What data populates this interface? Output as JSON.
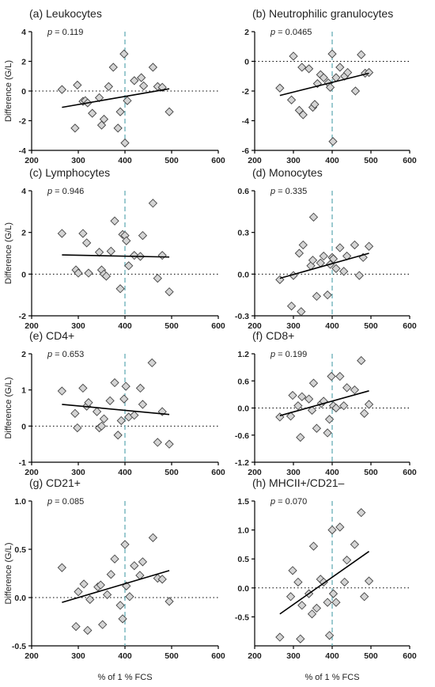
{
  "chart_data": [
    {
      "type": "scatter",
      "title": "(a) Leukocytes",
      "p_label": "p",
      "p_value": "= 0.119",
      "ylabel": "Difference (G/L)",
      "xlabel": "",
      "xlim": [
        200,
        600
      ],
      "xticks": [
        200,
        300,
        400,
        500,
        600
      ],
      "ylim": [
        -4,
        4
      ],
      "yticks": [
        -4,
        -2,
        0,
        2,
        4
      ],
      "ytick_labels": [
        "-4",
        "-2",
        "0",
        "2",
        "4"
      ],
      "ref_x": 400,
      "regression": {
        "x": [
          265,
          495
        ],
        "y": [
          -1.1,
          0.15
        ]
      },
      "points": [
        {
          "x": 265,
          "y": 0.1
        },
        {
          "x": 293,
          "y": -2.5
        },
        {
          "x": 298,
          "y": 0.4
        },
        {
          "x": 310,
          "y": -0.7
        },
        {
          "x": 315,
          "y": -0.65
        },
        {
          "x": 320,
          "y": -0.8
        },
        {
          "x": 330,
          "y": -1.5
        },
        {
          "x": 345,
          "y": -0.45
        },
        {
          "x": 350,
          "y": -2.3
        },
        {
          "x": 355,
          "y": -1.9
        },
        {
          "x": 365,
          "y": 0.3
        },
        {
          "x": 375,
          "y": 1.6
        },
        {
          "x": 385,
          "y": -2.5
        },
        {
          "x": 390,
          "y": -1.4
        },
        {
          "x": 398,
          "y": 2.5
        },
        {
          "x": 400,
          "y": -3.5
        },
        {
          "x": 405,
          "y": -0.65
        },
        {
          "x": 420,
          "y": 0.7
        },
        {
          "x": 435,
          "y": 0.9
        },
        {
          "x": 440,
          "y": 0.35
        },
        {
          "x": 460,
          "y": 1.6
        },
        {
          "x": 470,
          "y": 0.3
        },
        {
          "x": 480,
          "y": 0.25
        },
        {
          "x": 495,
          "y": -1.4
        }
      ]
    },
    {
      "type": "scatter",
      "title": "(b) Neutrophilic granulocytes",
      "p_label": "p",
      "p_value": "= 0.0465",
      "ylabel": "",
      "xlabel": "",
      "xlim": [
        200,
        600
      ],
      "xticks": [
        200,
        300,
        400,
        500,
        600
      ],
      "ylim": [
        -6,
        2
      ],
      "yticks": [
        -6,
        -4,
        -2,
        0,
        2
      ],
      "ytick_labels": [
        "-6",
        "-4",
        "-2",
        "0",
        "2"
      ],
      "ref_x": 400,
      "regression": {
        "x": [
          265,
          495
        ],
        "y": [
          -2.3,
          -0.8
        ]
      },
      "points": [
        {
          "x": 265,
          "y": -1.8
        },
        {
          "x": 295,
          "y": -2.6
        },
        {
          "x": 300,
          "y": 0.35
        },
        {
          "x": 315,
          "y": -3.3
        },
        {
          "x": 322,
          "y": -0.4
        },
        {
          "x": 325,
          "y": -3.6
        },
        {
          "x": 340,
          "y": -0.5
        },
        {
          "x": 350,
          "y": -3.1
        },
        {
          "x": 355,
          "y": -2.9
        },
        {
          "x": 362,
          "y": -1.5
        },
        {
          "x": 370,
          "y": -0.9
        },
        {
          "x": 378,
          "y": -1.1
        },
        {
          "x": 390,
          "y": -1.45
        },
        {
          "x": 395,
          "y": -1.75
        },
        {
          "x": 400,
          "y": 0.5
        },
        {
          "x": 402,
          "y": -5.4
        },
        {
          "x": 410,
          "y": -1.1
        },
        {
          "x": 420,
          "y": -0.4
        },
        {
          "x": 432,
          "y": -1.0
        },
        {
          "x": 440,
          "y": -0.75
        },
        {
          "x": 460,
          "y": -2.0
        },
        {
          "x": 475,
          "y": 0.45
        },
        {
          "x": 485,
          "y": -0.8
        },
        {
          "x": 495,
          "y": -0.75
        }
      ]
    },
    {
      "type": "scatter",
      "title": "(c) Lymphocytes",
      "p_label": "p",
      "p_value": "= 0.946",
      "ylabel": "Difference (G/L)",
      "xlabel": "",
      "xlim": [
        200,
        600
      ],
      "xticks": [
        200,
        300,
        400,
        500,
        600
      ],
      "ylim": [
        -2,
        4
      ],
      "yticks": [
        -2,
        0,
        2,
        4
      ],
      "ytick_labels": [
        "-2",
        "0",
        "2",
        "4"
      ],
      "ref_x": 400,
      "regression": {
        "x": [
          265,
          495
        ],
        "y": [
          0.92,
          0.82
        ]
      },
      "points": [
        {
          "x": 265,
          "y": 1.95
        },
        {
          "x": 295,
          "y": 0.2
        },
        {
          "x": 300,
          "y": 0.05
        },
        {
          "x": 310,
          "y": 1.95
        },
        {
          "x": 318,
          "y": 1.5
        },
        {
          "x": 322,
          "y": 0.05
        },
        {
          "x": 345,
          "y": 1.05
        },
        {
          "x": 350,
          "y": 0.2
        },
        {
          "x": 355,
          "y": 0.0
        },
        {
          "x": 360,
          "y": -0.1
        },
        {
          "x": 370,
          "y": 1.1
        },
        {
          "x": 378,
          "y": 2.55
        },
        {
          "x": 390,
          "y": -0.7
        },
        {
          "x": 395,
          "y": 1.9
        },
        {
          "x": 400,
          "y": 1.85
        },
        {
          "x": 403,
          "y": 1.6
        },
        {
          "x": 408,
          "y": 0.4
        },
        {
          "x": 420,
          "y": 0.9
        },
        {
          "x": 433,
          "y": 0.85
        },
        {
          "x": 438,
          "y": 1.85
        },
        {
          "x": 460,
          "y": 3.4
        },
        {
          "x": 470,
          "y": -0.2
        },
        {
          "x": 480,
          "y": 0.9
        },
        {
          "x": 495,
          "y": -0.85
        }
      ]
    },
    {
      "type": "scatter",
      "title": "(d) Monocytes",
      "p_label": "p",
      "p_value": "= 0.335",
      "ylabel": "",
      "xlabel": "",
      "xlim": [
        200,
        600
      ],
      "xticks": [
        200,
        300,
        400,
        500,
        600
      ],
      "ylim": [
        -0.3,
        0.6
      ],
      "yticks": [
        -0.3,
        0,
        0.3,
        0.6
      ],
      "ytick_labels": [
        "-0.3",
        "0.0",
        "0.3",
        "0.6"
      ],
      "ref_x": 400,
      "regression": {
        "x": [
          265,
          495
        ],
        "y": [
          -0.03,
          0.15
        ]
      },
      "points": [
        {
          "x": 265,
          "y": -0.04
        },
        {
          "x": 295,
          "y": -0.23
        },
        {
          "x": 300,
          "y": -0.01
        },
        {
          "x": 315,
          "y": 0.15
        },
        {
          "x": 320,
          "y": -0.27
        },
        {
          "x": 325,
          "y": 0.21
        },
        {
          "x": 345,
          "y": 0.06
        },
        {
          "x": 350,
          "y": 0.1
        },
        {
          "x": 352,
          "y": 0.41
        },
        {
          "x": 360,
          "y": -0.16
        },
        {
          "x": 370,
          "y": 0.08
        },
        {
          "x": 378,
          "y": 0.13
        },
        {
          "x": 388,
          "y": -0.15
        },
        {
          "x": 395,
          "y": 0.07
        },
        {
          "x": 400,
          "y": 0.12
        },
        {
          "x": 403,
          "y": 0.11
        },
        {
          "x": 410,
          "y": 0.04
        },
        {
          "x": 420,
          "y": 0.19
        },
        {
          "x": 430,
          "y": 0.02
        },
        {
          "x": 438,
          "y": 0.13
        },
        {
          "x": 458,
          "y": 0.21
        },
        {
          "x": 470,
          "y": -0.01
        },
        {
          "x": 480,
          "y": 0.12
        },
        {
          "x": 495,
          "y": 0.2
        }
      ]
    },
    {
      "type": "scatter",
      "title": "(e) CD4+",
      "p_label": "p",
      "p_value": "= 0.653",
      "ylabel": "Difference (G/L)",
      "xlabel": "",
      "xlim": [
        200,
        600
      ],
      "xticks": [
        200,
        300,
        400,
        500,
        600
      ],
      "ylim": [
        -1,
        2
      ],
      "yticks": [
        -1,
        0,
        1,
        2
      ],
      "ytick_labels": [
        "-1",
        "0",
        "1",
        "2"
      ],
      "ref_x": 400,
      "regression": {
        "x": [
          265,
          495
        ],
        "y": [
          0.6,
          0.32
        ]
      },
      "points": [
        {
          "x": 265,
          "y": 0.97
        },
        {
          "x": 293,
          "y": 0.35
        },
        {
          "x": 298,
          "y": -0.05
        },
        {
          "x": 310,
          "y": 1.05
        },
        {
          "x": 318,
          "y": 0.55
        },
        {
          "x": 322,
          "y": 0.65
        },
        {
          "x": 340,
          "y": 0.4
        },
        {
          "x": 345,
          "y": -0.05
        },
        {
          "x": 350,
          "y": 0.0
        },
        {
          "x": 355,
          "y": 0.2
        },
        {
          "x": 368,
          "y": 0.7
        },
        {
          "x": 378,
          "y": 1.2
        },
        {
          "x": 385,
          "y": -0.25
        },
        {
          "x": 392,
          "y": 0.15
        },
        {
          "x": 398,
          "y": 0.75
        },
        {
          "x": 402,
          "y": 1.1
        },
        {
          "x": 408,
          "y": 0.25
        },
        {
          "x": 420,
          "y": 0.3
        },
        {
          "x": 433,
          "y": 1.05
        },
        {
          "x": 438,
          "y": 0.6
        },
        {
          "x": 458,
          "y": 1.75
        },
        {
          "x": 470,
          "y": -0.45
        },
        {
          "x": 480,
          "y": 0.4
        },
        {
          "x": 495,
          "y": -0.5
        }
      ]
    },
    {
      "type": "scatter",
      "title": "(f) CD8+",
      "p_label": "p",
      "p_value": "= 0.199",
      "ylabel": "",
      "xlabel": "",
      "xlim": [
        200,
        600
      ],
      "xticks": [
        200,
        300,
        400,
        500,
        600
      ],
      "ylim": [
        -1.2,
        1.2
      ],
      "yticks": [
        -1.2,
        -0.6,
        0,
        0.6,
        1.2
      ],
      "ytick_labels": [
        "-1.2",
        "-0.6",
        "0.0",
        "0.6",
        "1.2"
      ],
      "ref_x": 400,
      "regression": {
        "x": [
          265,
          495
        ],
        "y": [
          -0.17,
          0.38
        ]
      },
      "points": [
        {
          "x": 265,
          "y": -0.2
        },
        {
          "x": 293,
          "y": -0.18
        },
        {
          "x": 298,
          "y": 0.28
        },
        {
          "x": 312,
          "y": 0.05
        },
        {
          "x": 318,
          "y": -0.65
        },
        {
          "x": 322,
          "y": 0.25
        },
        {
          "x": 340,
          "y": 0.2
        },
        {
          "x": 348,
          "y": -0.05
        },
        {
          "x": 352,
          "y": 0.55
        },
        {
          "x": 360,
          "y": -0.45
        },
        {
          "x": 372,
          "y": 0.1
        },
        {
          "x": 378,
          "y": 0.15
        },
        {
          "x": 388,
          "y": -0.55
        },
        {
          "x": 393,
          "y": -0.25
        },
        {
          "x": 398,
          "y": 0.7
        },
        {
          "x": 403,
          "y": 0.05
        },
        {
          "x": 410,
          "y": 0.0
        },
        {
          "x": 420,
          "y": 0.7
        },
        {
          "x": 430,
          "y": 0.05
        },
        {
          "x": 438,
          "y": 0.45
        },
        {
          "x": 458,
          "y": 0.4
        },
        {
          "x": 475,
          "y": 1.05
        },
        {
          "x": 483,
          "y": -0.12
        },
        {
          "x": 495,
          "y": 0.08
        }
      ]
    },
    {
      "type": "scatter",
      "title": "(g) CD21+",
      "p_label": "p",
      "p_value": "= 0.085",
      "ylabel": "Difference (G/L)",
      "xlabel": "% of 1 % FCS",
      "xlim": [
        200,
        600
      ],
      "xticks": [
        200,
        300,
        400,
        500,
        600
      ],
      "ylim": [
        -0.5,
        1.0
      ],
      "yticks": [
        -0.5,
        0,
        0.5,
        1.0
      ],
      "ytick_labels": [
        "-0.5",
        "0.0",
        "0.5",
        "1.0"
      ],
      "ref_x": 400,
      "regression": {
        "x": [
          265,
          495
        ],
        "y": [
          -0.05,
          0.28
        ]
      },
      "points": [
        {
          "x": 265,
          "y": 0.31
        },
        {
          "x": 295,
          "y": -0.3
        },
        {
          "x": 300,
          "y": 0.06
        },
        {
          "x": 312,
          "y": 0.14
        },
        {
          "x": 320,
          "y": -0.34
        },
        {
          "x": 325,
          "y": -0.02
        },
        {
          "x": 342,
          "y": 0.11
        },
        {
          "x": 348,
          "y": 0.13
        },
        {
          "x": 352,
          "y": -0.28
        },
        {
          "x": 362,
          "y": 0.03
        },
        {
          "x": 370,
          "y": 0.24
        },
        {
          "x": 378,
          "y": 0.4
        },
        {
          "x": 390,
          "y": -0.08
        },
        {
          "x": 395,
          "y": -0.22
        },
        {
          "x": 400,
          "y": 0.55
        },
        {
          "x": 403,
          "y": 0.12
        },
        {
          "x": 410,
          "y": 0.01
        },
        {
          "x": 420,
          "y": 0.33
        },
        {
          "x": 432,
          "y": 0.23
        },
        {
          "x": 438,
          "y": 0.37
        },
        {
          "x": 460,
          "y": 0.62
        },
        {
          "x": 470,
          "y": 0.2
        },
        {
          "x": 480,
          "y": 0.19
        },
        {
          "x": 495,
          "y": -0.04
        }
      ]
    },
    {
      "type": "scatter",
      "title": "(h) MHCII+/CD21–",
      "p_label": "p",
      "p_value": "= 0.070",
      "ylabel": "",
      "xlabel": "% of 1 % FCS",
      "xlim": [
        200,
        600
      ],
      "xticks": [
        200,
        300,
        400,
        500,
        600
      ],
      "ylim": [
        -1.0,
        1.5
      ],
      "yticks": [
        -0.5,
        0,
        0.5,
        1.0,
        1.5
      ],
      "ytick_labels": [
        "-0.5",
        "0.0",
        "0.5",
        "1.0",
        "1.5"
      ],
      "ref_x": 400,
      "regression": {
        "x": [
          265,
          495
        ],
        "y": [
          -0.45,
          0.63
        ]
      },
      "points": [
        {
          "x": 265,
          "y": -0.85
        },
        {
          "x": 293,
          "y": -0.15
        },
        {
          "x": 298,
          "y": 0.3
        },
        {
          "x": 312,
          "y": 0.1
        },
        {
          "x": 318,
          "y": -0.88
        },
        {
          "x": 322,
          "y": -0.3
        },
        {
          "x": 340,
          "y": -0.1
        },
        {
          "x": 348,
          "y": -0.45
        },
        {
          "x": 352,
          "y": 0.72
        },
        {
          "x": 360,
          "y": -0.35
        },
        {
          "x": 370,
          "y": 0.15
        },
        {
          "x": 378,
          "y": 0.1
        },
        {
          "x": 388,
          "y": -0.25
        },
        {
          "x": 393,
          "y": -0.82
        },
        {
          "x": 400,
          "y": 1.0
        },
        {
          "x": 403,
          "y": -0.1
        },
        {
          "x": 410,
          "y": -0.25
        },
        {
          "x": 420,
          "y": 1.05
        },
        {
          "x": 432,
          "y": 0.1
        },
        {
          "x": 438,
          "y": 0.48
        },
        {
          "x": 458,
          "y": 0.75
        },
        {
          "x": 475,
          "y": 1.3
        },
        {
          "x": 483,
          "y": -0.15
        },
        {
          "x": 495,
          "y": 0.12
        }
      ]
    }
  ]
}
